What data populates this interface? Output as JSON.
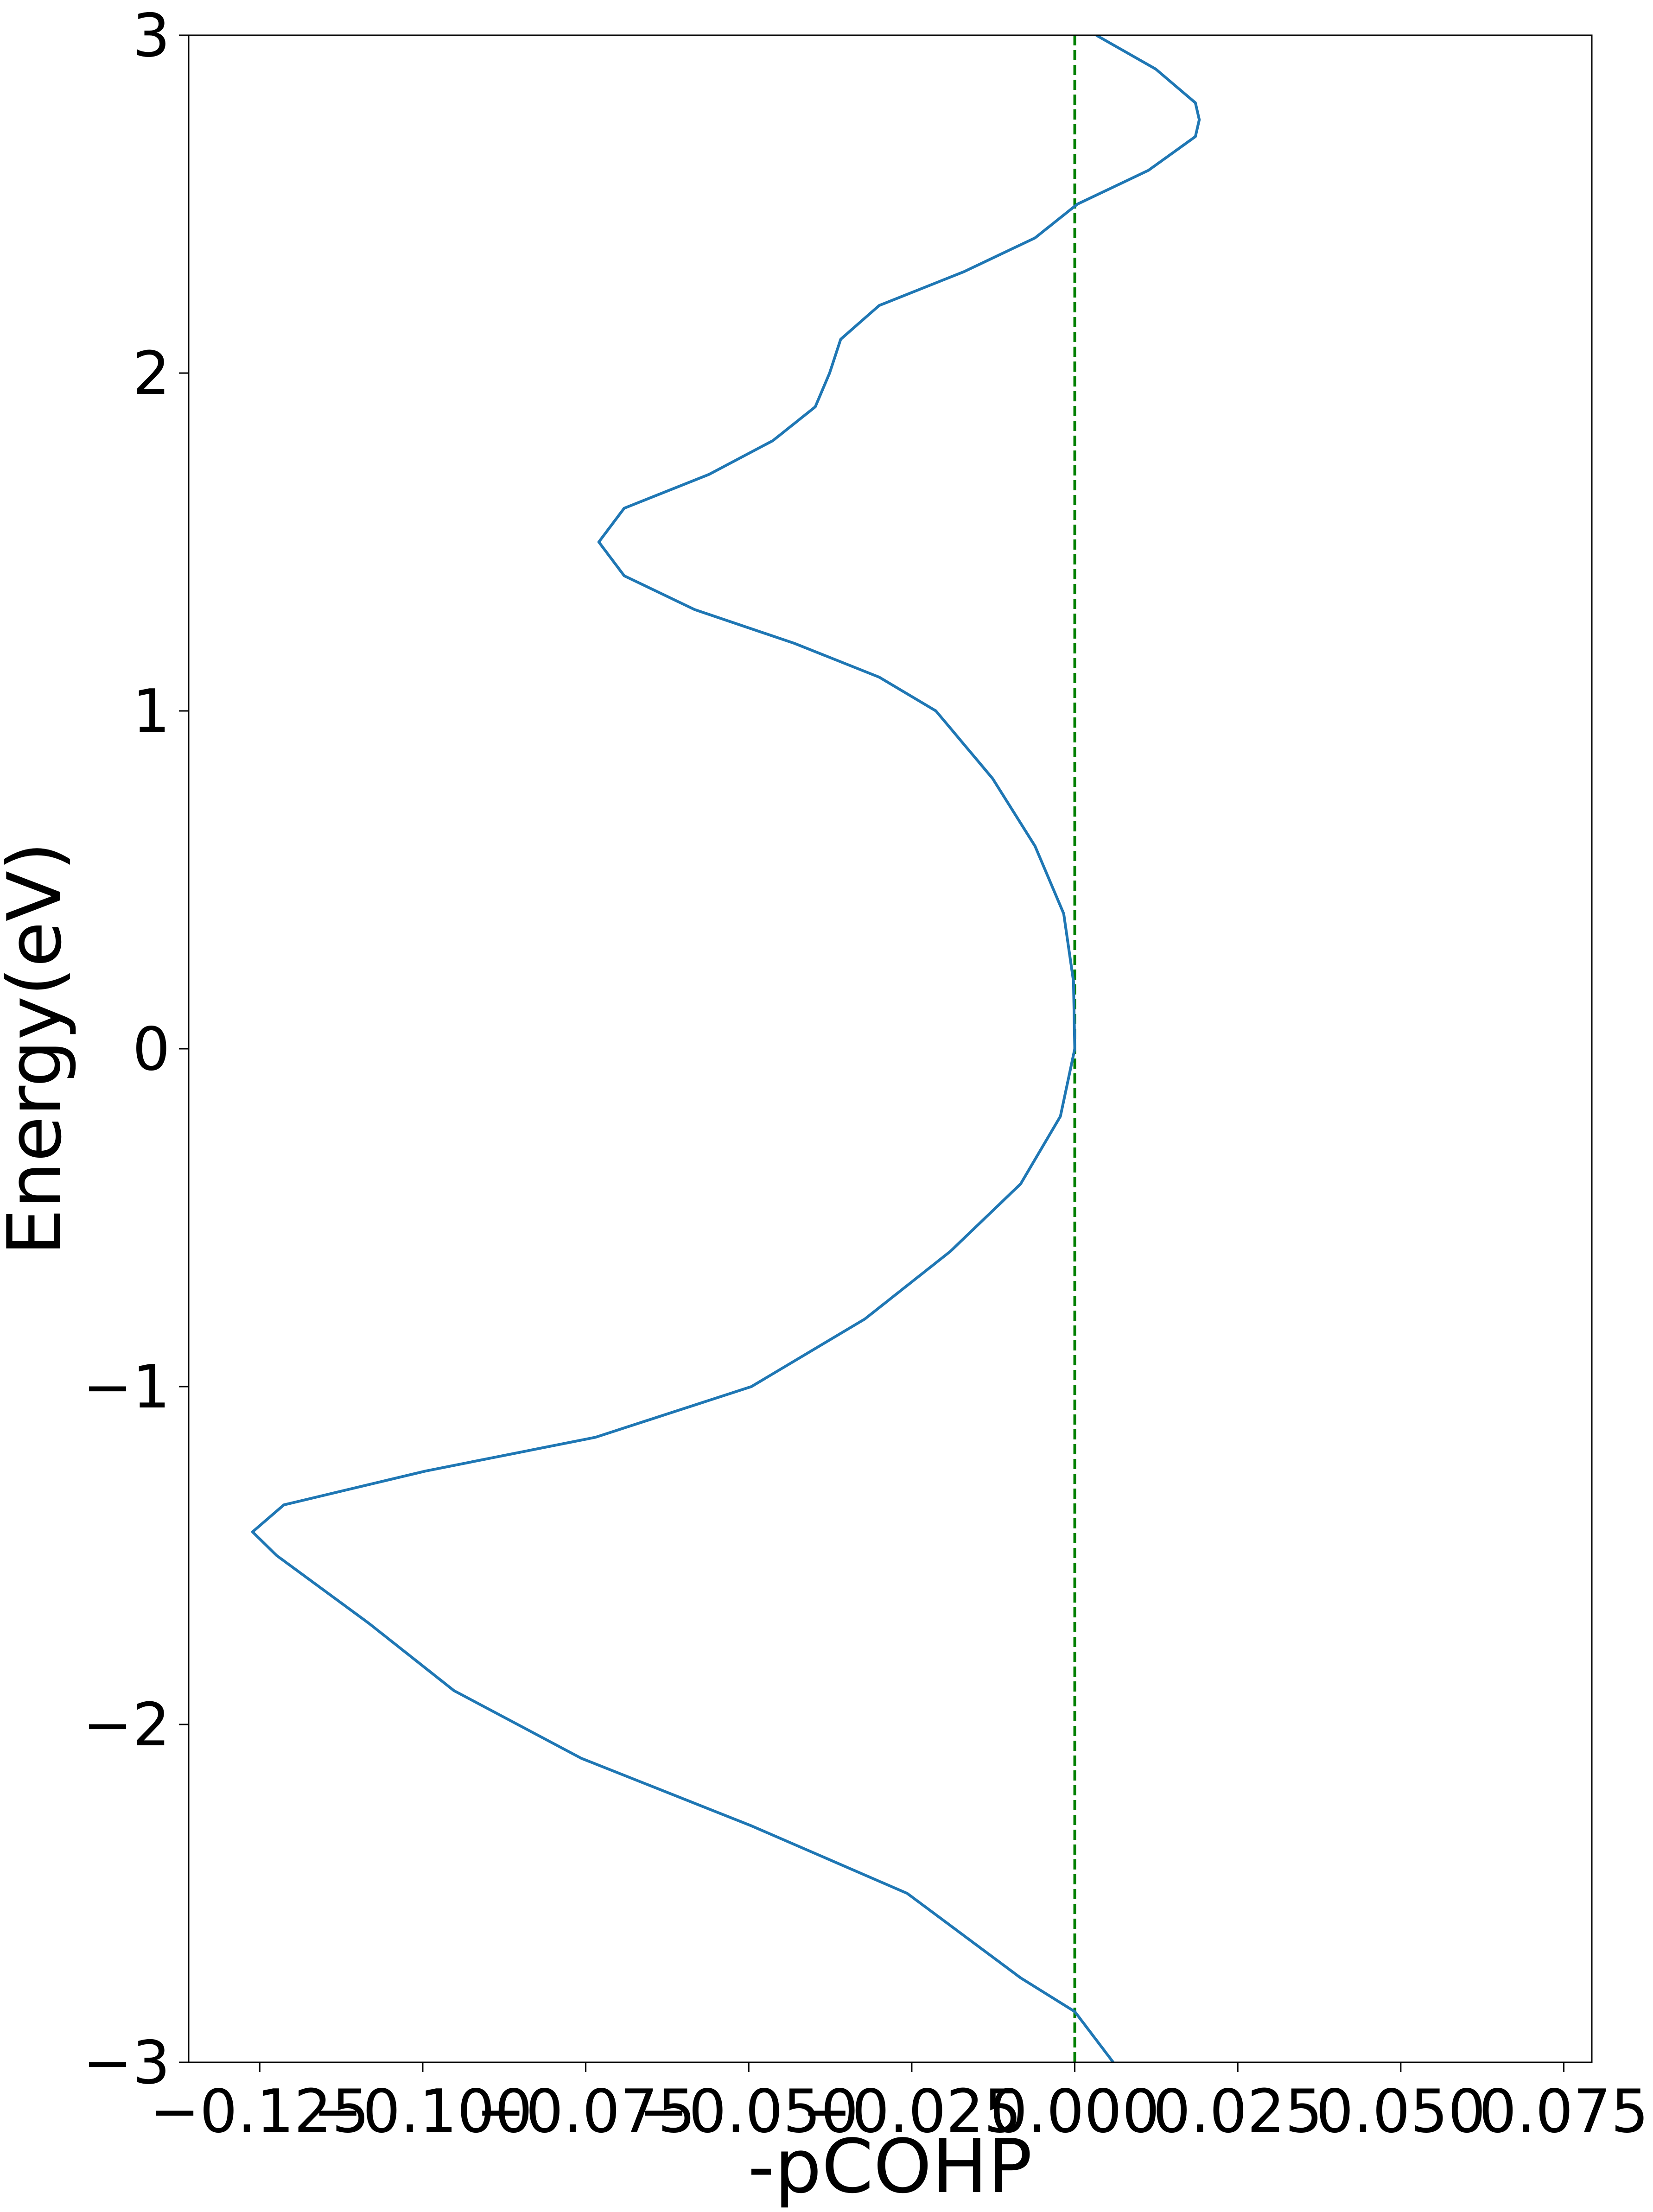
{
  "chart_data": {
    "type": "line",
    "x_label": "-pCOHP",
    "y_label": "Energy(eV)",
    "y": [
      -3.0,
      -2.85,
      -2.75,
      -2.5,
      -2.3,
      -2.1,
      -1.9,
      -1.7,
      -1.5,
      -1.43,
      -1.35,
      -1.25,
      -1.15,
      -1.0,
      -0.8,
      -0.6,
      -0.4,
      -0.2,
      0.0,
      0.2,
      0.4,
      0.6,
      0.8,
      1.0,
      1.1,
      1.2,
      1.3,
      1.4,
      1.5,
      1.6,
      1.7,
      1.8,
      1.9,
      2.0,
      2.1,
      2.2,
      2.3,
      2.4,
      2.5,
      2.6,
      2.7,
      2.75,
      2.8,
      2.9,
      3.0
    ],
    "series": [
      {
        "color": "#1f77b4",
        "values": [
          0.0059,
          0.0,
          -0.0083,
          -0.0257,
          -0.0496,
          -0.0757,
          -0.0952,
          -0.1083,
          -0.1224,
          -0.1261,
          -0.1213,
          -0.0996,
          -0.0735,
          -0.0496,
          -0.0322,
          -0.0191,
          -0.0083,
          -0.0022,
          0.0,
          -0.0002,
          -0.0017,
          -0.0061,
          -0.0126,
          -0.0213,
          -0.03,
          -0.043,
          -0.0583,
          -0.0691,
          -0.073,
          -0.0691,
          -0.0561,
          -0.0463,
          -0.0398,
          -0.0376,
          -0.0359,
          -0.03,
          -0.017,
          -0.0061,
          0.0004,
          0.0113,
          0.0185,
          0.0191,
          0.0185,
          0.0124,
          0.0033
        ]
      }
    ],
    "vline": {
      "value": 0,
      "color": "#008000"
    },
    "xlim": [
      -0.1359,
      0.0793
    ],
    "ylim": [
      -3,
      3
    ],
    "xticks": [
      {
        "value": -0.125,
        "label": "−0.125"
      },
      {
        "value": -0.1,
        "label": "−0.100"
      },
      {
        "value": -0.075,
        "label": "−0.075"
      },
      {
        "value": -0.05,
        "label": "−0.050"
      },
      {
        "value": -0.025,
        "label": "−0.025"
      },
      {
        "value": 0,
        "label": "0.000"
      },
      {
        "value": 0.025,
        "label": "0.025"
      },
      {
        "value": 0.05,
        "label": "0.050"
      },
      {
        "value": 0.075,
        "label": "0.075"
      }
    ],
    "yticks": [
      {
        "value": -3,
        "label": "−3"
      },
      {
        "value": -2,
        "label": "−2"
      },
      {
        "value": -1,
        "label": "−1"
      },
      0,
      1,
      2,
      3
    ],
    "grid": false
  }
}
